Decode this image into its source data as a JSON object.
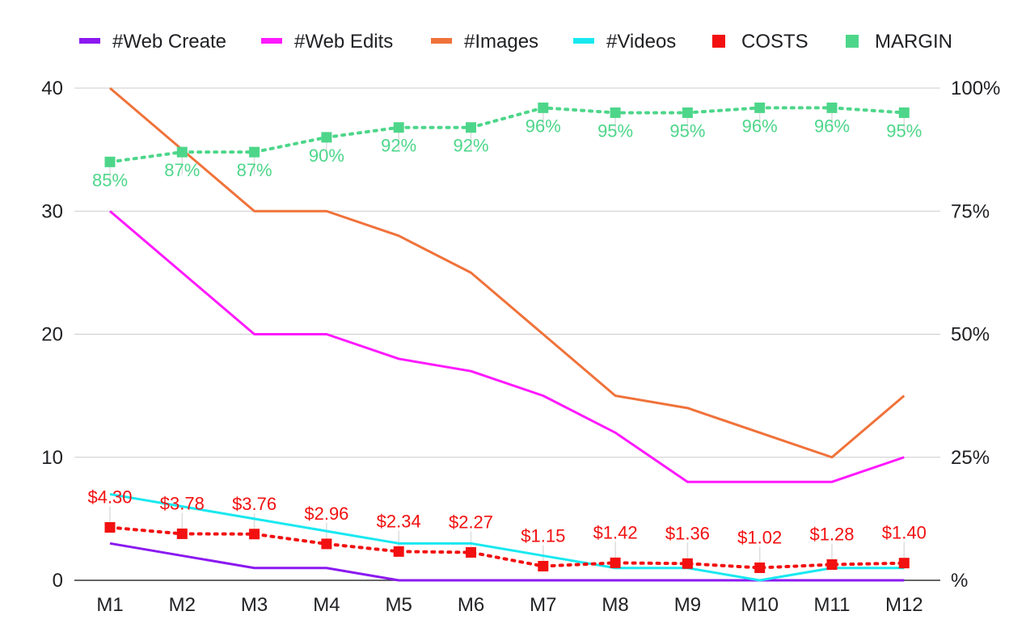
{
  "chart_data": {
    "type": "line",
    "categories": [
      "M1",
      "M2",
      "M3",
      "M4",
      "M5",
      "M6",
      "M7",
      "M8",
      "M9",
      "M10",
      "M11",
      "M12"
    ],
    "left_axis": {
      "ticks": [
        "0",
        "10",
        "20",
        "30",
        "40"
      ],
      "ylim": [
        0,
        40
      ]
    },
    "right_axis": {
      "ticks": [
        "%",
        "25%",
        "50%",
        "75%",
        "100%"
      ],
      "ylim": [
        0,
        100
      ]
    },
    "grid": true,
    "legend_position": "top",
    "series": [
      {
        "name": "#Web Create",
        "color": "#8b19f0",
        "axis": "left",
        "style": "line",
        "values": [
          3,
          2,
          1,
          1,
          0,
          0,
          0,
          0,
          0,
          0,
          0,
          0
        ]
      },
      {
        "name": "#Web Edits",
        "color": "#ff19ff",
        "axis": "left",
        "style": "line",
        "values": [
          30,
          25,
          20,
          20,
          18,
          17,
          15,
          12,
          8,
          8,
          8,
          10
        ]
      },
      {
        "name": "#Images",
        "color": "#f0723a",
        "axis": "left",
        "style": "line",
        "values": [
          40,
          35,
          30,
          30,
          28,
          25,
          20,
          15,
          14,
          12,
          10,
          15
        ]
      },
      {
        "name": "#Videos",
        "color": "#19e8f0",
        "axis": "left",
        "style": "line",
        "values": [
          7,
          6,
          5,
          4,
          3,
          3,
          2,
          1,
          1,
          0,
          1,
          1
        ]
      },
      {
        "name": "COSTS",
        "color": "#f21010",
        "axis": "left",
        "style": "dotted-markers",
        "values": [
          4.3,
          3.78,
          3.76,
          2.96,
          2.34,
          2.27,
          1.15,
          1.42,
          1.36,
          1.02,
          1.28,
          1.4
        ],
        "labels": [
          "$4.30",
          "$3.78",
          "$3.76",
          "$2.96",
          "$2.34",
          "$2.27",
          "$1.15",
          "$1.42",
          "$1.36",
          "$1.02",
          "$1.28",
          "$1.40"
        ]
      },
      {
        "name": "MARGIN",
        "color": "#4dd68a",
        "axis": "right",
        "style": "dotted-markers",
        "values": [
          85,
          87,
          87,
          90,
          92,
          92,
          96,
          95,
          95,
          96,
          96,
          95
        ],
        "labels": [
          "85%",
          "87%",
          "87%",
          "90%",
          "92%",
          "92%",
          "96%",
          "95%",
          "95%",
          "96%",
          "96%",
          "95%"
        ]
      }
    ]
  }
}
